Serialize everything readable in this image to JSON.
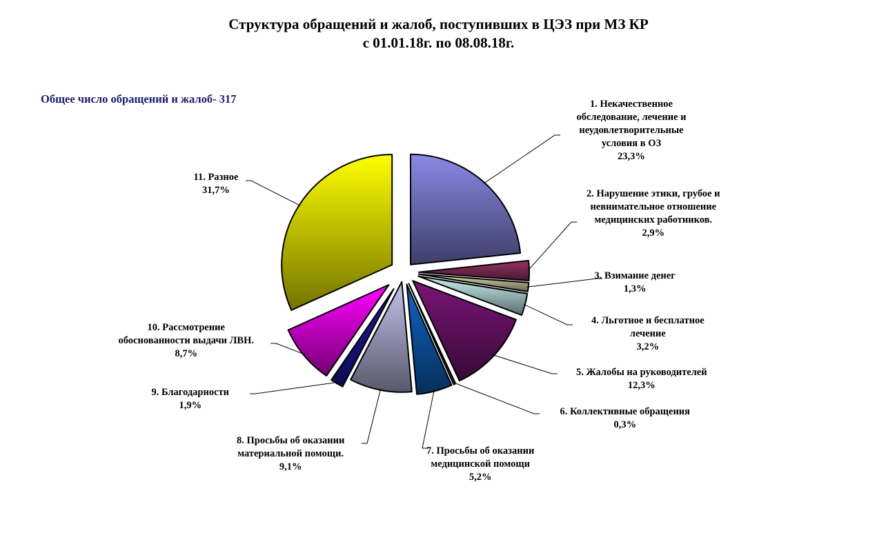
{
  "chart_data": {
    "type": "pie",
    "title": [
      "Структура обращений и жалоб, поступивших в ЦЭЗ при МЗ КР",
      "с 01.01.18г. по 08.08.18г."
    ],
    "subtitle": "Общее число обращений и жалоб- 317",
    "exploded": true,
    "slices": [
      {
        "label": [
          "1. Некачественное",
          "обследование, лечение и",
          "неудовлетворительные",
          "условия в ОЗ"
        ],
        "value": 23.3,
        "value_label": "23,3%",
        "color": "#8a8ae6"
      },
      {
        "label": [
          "2. Нарушение этики, грубое и",
          "невнимательное отношение",
          "медицинских работников."
        ],
        "value": 2.9,
        "value_label": "2,9%",
        "color": "#993366"
      },
      {
        "label": [
          "3. Взимание денег"
        ],
        "value": 1.3,
        "value_label": "1,3%",
        "color": "#ddddb0"
      },
      {
        "label": [
          "4. Льготное и бесплатное",
          "лечение"
        ],
        "value": 3.2,
        "value_label": "3,2%",
        "color": "#c8f0f0"
      },
      {
        "label": [
          "5. Жалобы на руководителей"
        ],
        "value": 12.3,
        "value_label": "12,3%",
        "color": "#7a1577"
      },
      {
        "label": [
          "6. Коллективные обращения"
        ],
        "value": 0.3,
        "value_label": "0,3%",
        "color": "#e06060"
      },
      {
        "label": [
          "7. Просьбы об оказании",
          "медицинской помощи"
        ],
        "value": 5.2,
        "value_label": "5,2%",
        "color": "#1066c8"
      },
      {
        "label": [
          "8. Просьбы об оказании",
          "материальной помощи."
        ],
        "value": 9.1,
        "value_label": "9,1%",
        "color": "#c4c4ee"
      },
      {
        "label": [
          "9. Благодарности"
        ],
        "value": 1.9,
        "value_label": "1,9%",
        "color": "#1a1aa8"
      },
      {
        "label": [
          "10. Рассмотрение",
          "обоснованности выдачи ЛВН."
        ],
        "value": 8.7,
        "value_label": "8,7%",
        "color": "#ff00ff"
      },
      {
        "label": [
          "11. Разное"
        ],
        "value": 31.7,
        "value_label": "31,7%",
        "color": "#ffff00"
      }
    ]
  }
}
